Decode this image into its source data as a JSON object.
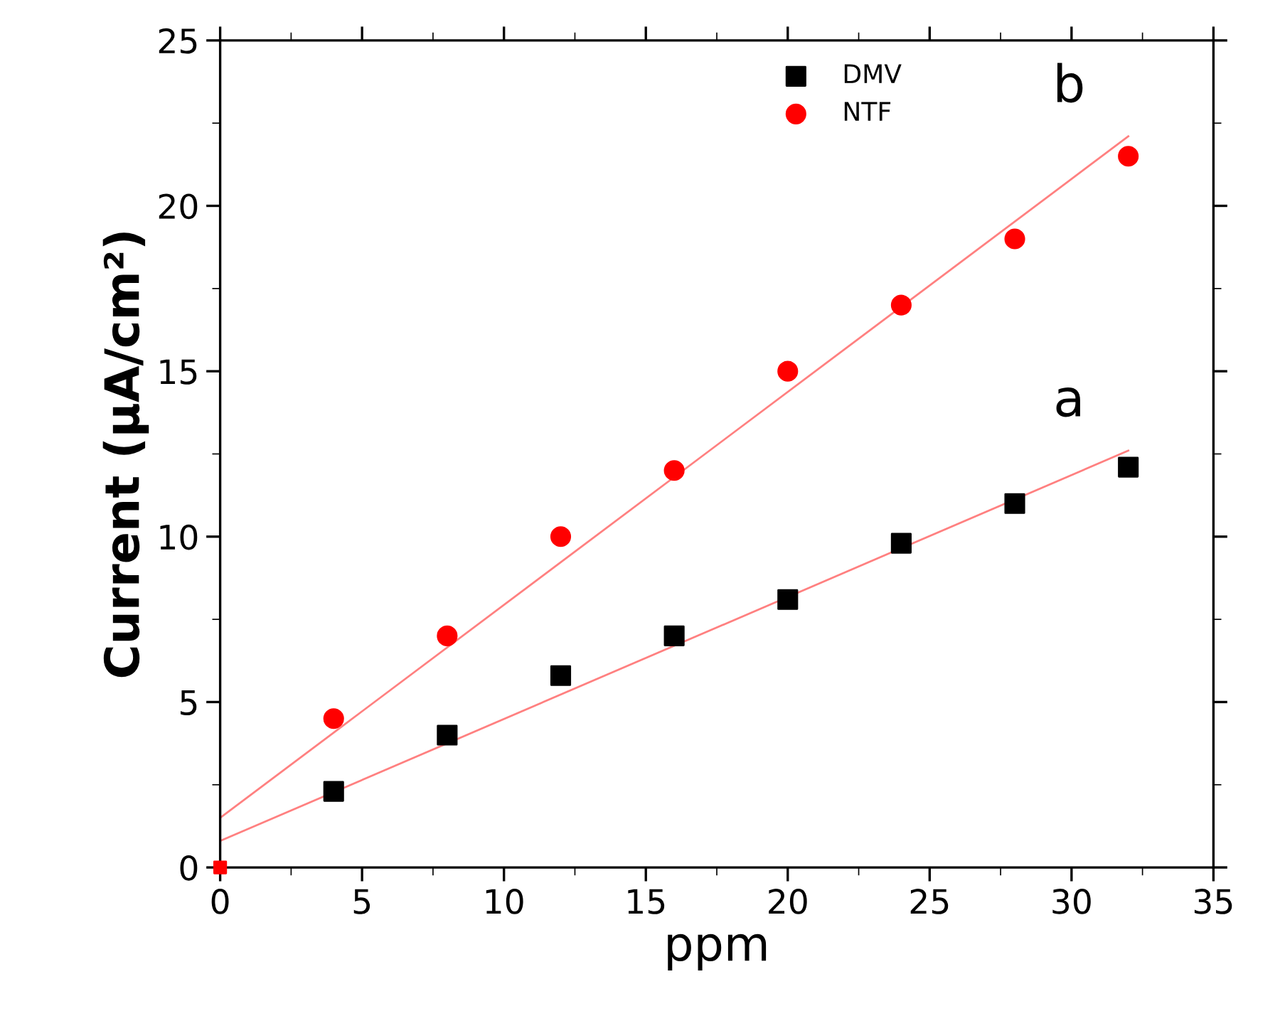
{
  "chart_data": {
    "type": "scatter",
    "xlabel": "ppm",
    "ylabel": "Current (μA/cm²)",
    "xlim": [
      0,
      35
    ],
    "xticks": [
      0,
      5,
      10,
      15,
      20,
      25,
      30,
      35
    ],
    "ylim": [
      0,
      25
    ],
    "yticks": [
      0,
      5,
      10,
      15,
      20,
      25
    ],
    "grid": false,
    "legend": "top",
    "series": [
      {
        "name": "DMV",
        "color": "#000000",
        "marker": "square",
        "x": [
          4,
          8,
          12,
          16,
          20,
          24,
          28,
          32
        ],
        "values": [
          2.3,
          4.0,
          5.8,
          7.0,
          8.1,
          9.8,
          11.0,
          12.1
        ]
      },
      {
        "name": "NTF",
        "color": "#ff0000",
        "marker": "circle",
        "x": [
          4,
          8,
          12,
          16,
          20,
          24,
          28,
          32
        ],
        "values": [
          4.5,
          7.0,
          10.0,
          12.0,
          15.0,
          17.0,
          19.0,
          21.5
        ]
      },
      {
        "type": "line",
        "name": "a",
        "color": "#ff8080",
        "x": [
          0,
          32
        ],
        "values": [
          0.8,
          12.6
        ]
      },
      {
        "type": "line",
        "name": "b",
        "color": "#ff8080",
        "x": [
          0,
          32
        ],
        "values": [
          1.5,
          22.1
        ]
      },
      {
        "color": "#ff0000",
        "marker": "square",
        "x": [
          0
        ],
        "values": [
          0
        ]
      }
    ]
  }
}
